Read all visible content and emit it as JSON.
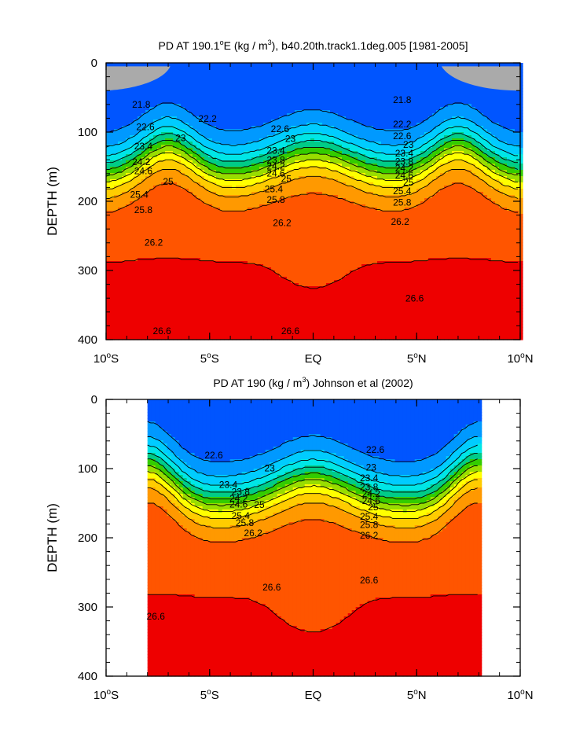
{
  "chart_data": [
    {
      "type": "contour",
      "title_prefix": "PD AT 190.1",
      "title_sup_deg": "o",
      "title_mid": "E (kg / m",
      "title_sup_pow": "3",
      "title_suffix": "), b40.20th.track1.1deg.005 [1981-2005]",
      "ylabel": "DEPTH (m)",
      "ylim": [
        0,
        400
      ],
      "yticks": [
        "0",
        "100",
        "200",
        "300",
        "400"
      ],
      "xlim": [
        -10,
        10
      ],
      "xticks": [
        {
          "num": "10",
          "deg": "o",
          "hemi": "S"
        },
        {
          "num": "5",
          "deg": "o",
          "hemi": "S"
        },
        {
          "num": "EQ",
          "deg": "",
          "hemi": ""
        },
        {
          "num": "5",
          "deg": "o",
          "hemi": "N"
        },
        {
          "num": "10",
          "deg": "o",
          "hemi": "N"
        }
      ],
      "lat_extent": [
        -10,
        10
      ],
      "model": {
        "thermocline_depth": 160,
        "eq_shallowing": 35,
        "deep_bowl": 45,
        "shoal_lat": 7,
        "shoal_depth": 45
      },
      "contour_labels": [
        {
          "text": "21.8",
          "lat": -8.3,
          "depth": 65
        },
        {
          "text": "22.2",
          "lat": -5.1,
          "depth": 85
        },
        {
          "text": "22.6",
          "lat": -8.1,
          "depth": 97
        },
        {
          "text": "23",
          "lat": -6.4,
          "depth": 113
        },
        {
          "text": "23.4",
          "lat": -8.2,
          "depth": 125
        },
        {
          "text": "24.2",
          "lat": -8.3,
          "depth": 148
        },
        {
          "text": "24.6",
          "lat": -8.2,
          "depth": 161
        },
        {
          "text": "25",
          "lat": -7.0,
          "depth": 176
        },
        {
          "text": "25.4",
          "lat": -8.4,
          "depth": 195
        },
        {
          "text": "25.8",
          "lat": -8.2,
          "depth": 217
        },
        {
          "text": "26.2",
          "lat": -7.7,
          "depth": 264
        },
        {
          "text": "26.6",
          "lat": -7.3,
          "depth": 392
        },
        {
          "text": "22.6",
          "lat": -1.6,
          "depth": 100
        },
        {
          "text": "23",
          "lat": -1.1,
          "depth": 114
        },
        {
          "text": "23.4",
          "lat": -1.8,
          "depth": 131
        },
        {
          "text": "23.8",
          "lat": -1.8,
          "depth": 145
        },
        {
          "text": "24.2",
          "lat": -1.8,
          "depth": 154
        },
        {
          "text": "24.6",
          "lat": -1.8,
          "depth": 164
        },
        {
          "text": "25",
          "lat": -1.3,
          "depth": 172
        },
        {
          "text": "25.4",
          "lat": -1.9,
          "depth": 187
        },
        {
          "text": "25.8",
          "lat": -1.8,
          "depth": 202
        },
        {
          "text": "26.2",
          "lat": -1.5,
          "depth": 236
        },
        {
          "text": "26.6",
          "lat": -1.1,
          "depth": 392
        },
        {
          "text": "21.8",
          "lat": 4.3,
          "depth": 58
        },
        {
          "text": "22.2",
          "lat": 4.3,
          "depth": 93
        },
        {
          "text": "22.6",
          "lat": 4.3,
          "depth": 110
        },
        {
          "text": "23",
          "lat": 4.6,
          "depth": 123
        },
        {
          "text": "23.4",
          "lat": 4.4,
          "depth": 135
        },
        {
          "text": "23.8",
          "lat": 4.4,
          "depth": 147
        },
        {
          "text": "24.2",
          "lat": 4.4,
          "depth": 157
        },
        {
          "text": "24.6",
          "lat": 4.4,
          "depth": 167
        },
        {
          "text": "25",
          "lat": 4.6,
          "depth": 177
        },
        {
          "text": "25.4",
          "lat": 4.3,
          "depth": 190
        },
        {
          "text": "25.8",
          "lat": 4.3,
          "depth": 206
        },
        {
          "text": "26.2",
          "lat": 4.2,
          "depth": 234
        },
        {
          "text": "26.6",
          "lat": 4.9,
          "depth": 345
        }
      ]
    },
    {
      "type": "contour",
      "title_prefix": "PD AT 190 (kg / m",
      "title_sup_deg": "",
      "title_mid": "",
      "title_sup_pow": "3",
      "title_suffix": ") Johnson et al (2002)",
      "ylabel": "DEPTH (m)",
      "ylim": [
        0,
        400
      ],
      "yticks": [
        "0",
        "100",
        "200",
        "300",
        "400"
      ],
      "xlim": [
        -10,
        10
      ],
      "xticks": [
        {
          "num": "10",
          "deg": "o",
          "hemi": "S"
        },
        {
          "num": "5",
          "deg": "o",
          "hemi": "S"
        },
        {
          "num": "EQ",
          "deg": "",
          "hemi": ""
        },
        {
          "num": "5",
          "deg": "o",
          "hemi": "N"
        },
        {
          "num": "10",
          "deg": "o",
          "hemi": "N"
        }
      ],
      "lat_extent": [
        -8,
        8
      ],
      "model": {
        "thermocline_depth": 150,
        "eq_shallowing": 40,
        "deep_bowl": 70,
        "shoal_lat": 8,
        "shoal_depth": 60
      },
      "contour_labels": [
        {
          "text": "22.6",
          "lat": -4.8,
          "depth": 85
        },
        {
          "text": "23",
          "lat": -2.1,
          "depth": 104
        },
        {
          "text": "23.4",
          "lat": -4.1,
          "depth": 128
        },
        {
          "text": "23.8",
          "lat": -3.5,
          "depth": 138
        },
        {
          "text": "24.2",
          "lat": -3.6,
          "depth": 148
        },
        {
          "text": "24.6",
          "lat": -3.6,
          "depth": 156
        },
        {
          "text": "25",
          "lat": -2.6,
          "depth": 157
        },
        {
          "text": "25.4",
          "lat": -3.5,
          "depth": 173
        },
        {
          "text": "25.8",
          "lat": -3.3,
          "depth": 183
        },
        {
          "text": "26.2",
          "lat": -2.9,
          "depth": 198
        },
        {
          "text": "26.6",
          "lat": -2.0,
          "depth": 276
        },
        {
          "text": "26.6",
          "lat": -7.6,
          "depth": 318
        },
        {
          "text": "22.6",
          "lat": 3.0,
          "depth": 77
        },
        {
          "text": "23",
          "lat": 2.8,
          "depth": 103
        },
        {
          "text": "23.4",
          "lat": 2.7,
          "depth": 118
        },
        {
          "text": "23.8",
          "lat": 2.7,
          "depth": 131
        },
        {
          "text": "24.2",
          "lat": 2.8,
          "depth": 141
        },
        {
          "text": "24.6",
          "lat": 2.8,
          "depth": 151
        },
        {
          "text": "25",
          "lat": 2.9,
          "depth": 160
        },
        {
          "text": "25.4",
          "lat": 2.7,
          "depth": 174
        },
        {
          "text": "25.8",
          "lat": 2.7,
          "depth": 186
        },
        {
          "text": "26.2",
          "lat": 2.7,
          "depth": 201
        },
        {
          "text": "26.6",
          "lat": 2.7,
          "depth": 266
        }
      ]
    }
  ],
  "colormap": {
    "levels": [
      21.4,
      21.8,
      22.2,
      22.6,
      23.0,
      23.4,
      23.8,
      24.2,
      24.6,
      25.0,
      25.4,
      25.8,
      26.2,
      26.6
    ],
    "colors": [
      "#ff00ff",
      "#dd00ee",
      "#aa00dd",
      "#6a00ea",
      "#0000ff",
      "#0055ff",
      "#0099ff",
      "#00ccff",
      "#00e6e6",
      "#00cc88",
      "#33cc00",
      "#99dd00",
      "#ffff00",
      "#ffcc00",
      "#ff9900",
      "#ff5500",
      "#ee0000",
      "#cc0000"
    ],
    "land_color": "#aaaaaa"
  }
}
